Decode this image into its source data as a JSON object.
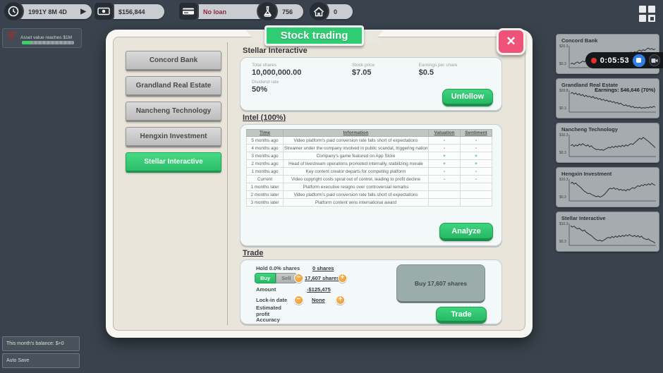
{
  "colors": {
    "accent_green": "#2fcc74",
    "close_pink": "#f0537a",
    "loan_red": "#8e2b3a",
    "coin_orange": "#ef9426"
  },
  "top_bar": {
    "date": "1991Y 8M 4D",
    "money": "$156,844",
    "loan": "No loan",
    "research_points": "756",
    "properties": "0"
  },
  "achievement": {
    "label": "Asset value reaches $1M"
  },
  "banner": {
    "title": "Stock trading"
  },
  "dialog": {
    "companies": [
      "Concord Bank",
      "Grandland Real Estate",
      "Nancheng Technology",
      "Hengxin Investment",
      "Stellar Interactive"
    ],
    "stats": {
      "heading": "Stellar Interactive",
      "total_shares_label": "Total shares",
      "total_shares": "10,000,000.00",
      "stock_price_label": "Stock price",
      "stock_price": "$7.05",
      "eps_label": "Earnings per share",
      "eps": "$0.5",
      "dividend_label": "Dividend rate",
      "dividend": "50%",
      "unfollow": "Unfollow"
    },
    "intel": {
      "heading": "Intel (100%)",
      "columns": [
        "Time",
        "Information",
        "Valuation",
        "Sentiment"
      ],
      "rows": [
        {
          "time": "5 months ago",
          "info": "Video platform's paid conversion rate falls short of expectations",
          "valuation": "-",
          "sentiment": "-"
        },
        {
          "time": "4 months ago",
          "info": "Streamer under the company involved in public scandal, triggering nation",
          "valuation": "-",
          "sentiment": "-"
        },
        {
          "time": "3 months ago",
          "info": "Company's game featured on App Store",
          "valuation": "+",
          "sentiment": "+"
        },
        {
          "time": "2 months ago",
          "info": "Head of livestream operations promoted internally, stabilizing morale",
          "valuation": "+",
          "sentiment": "+"
        },
        {
          "time": "1 months ago",
          "info": "Key content creator departs for competing platform",
          "valuation": "-",
          "sentiment": "-"
        },
        {
          "time": "Current",
          "info": "Video copyright costs spiral out of control, leading to profit decline",
          "valuation": "-",
          "sentiment": "-"
        },
        {
          "time": "1 months later",
          "info": "Platform executive resigns over controversial remarks",
          "valuation": "",
          "sentiment": ""
        },
        {
          "time": "2 months later",
          "info": "Video platform's paid conversion rate falls short of expectations",
          "valuation": "",
          "sentiment": ""
        },
        {
          "time": "3 months later",
          "info": "Platform content wins international award",
          "valuation": "",
          "sentiment": ""
        }
      ],
      "analyze": "Analyze"
    },
    "trade": {
      "heading": "Trade",
      "hold_label": "Hold 0.0% shares",
      "hold_value": "0 shares",
      "buy": "Buy",
      "sell": "Sell",
      "shares": "17,607 shares",
      "amount_label": "Amount",
      "amount": "-$125,475",
      "lockin_label": "Lock-in date",
      "lockin": "None",
      "estimated_label": "Estimated profit",
      "accuracy_label": "Accuracy",
      "action": "Buy 17,607 shares",
      "trade": "Trade"
    }
  },
  "sidebar": {
    "cards": [
      {
        "name": "Concord Bank",
        "y_top": "$20.3",
        "y_bottom": "$0.3",
        "points": [
          12,
          16,
          10,
          18,
          22,
          15,
          20,
          26,
          22,
          30,
          26,
          34,
          30,
          24,
          28,
          20,
          26,
          34,
          30,
          38,
          34,
          42,
          38,
          46,
          50,
          44,
          52,
          48,
          56,
          52,
          60,
          56,
          64,
          60,
          68,
          72,
          66,
          74,
          70,
          78,
          82,
          76,
          84,
          80,
          88,
          92,
          86,
          90,
          84,
          88
        ]
      },
      {
        "name": "Grandland Real Estate",
        "earnings": "Earnings: $46,646 (70%)",
        "y_top": "$20.8",
        "y_bottom": "$0.3",
        "points": [
          88,
          92,
          84,
          90,
          80,
          86,
          76,
          82,
          72,
          78,
          70,
          74,
          66,
          72,
          62,
          66,
          58,
          62,
          54,
          58,
          50,
          54,
          46,
          50,
          42,
          46,
          38,
          42,
          34,
          38,
          30,
          26,
          30,
          22,
          26,
          18,
          22,
          15,
          18,
          14,
          18,
          12,
          16,
          13,
          17,
          14,
          20,
          16,
          22,
          18
        ]
      },
      {
        "name": "Nancheng Technology",
        "y_top": "$10.3",
        "y_bottom": "$0.3",
        "points": [
          48,
          54,
          44,
          52,
          46,
          56,
          50,
          58,
          52,
          46,
          52,
          42,
          48,
          38,
          32,
          28,
          30,
          26,
          28,
          24,
          30,
          34,
          40,
          36,
          44,
          38,
          46,
          40,
          48,
          42,
          50,
          44,
          52,
          46,
          54,
          58,
          54,
          62,
          70,
          78,
          86,
          80,
          90,
          84,
          76,
          70,
          62,
          54,
          46,
          38
        ]
      },
      {
        "name": "Hengxin Investment",
        "y_top": "$10.3",
        "y_bottom": "$0.3",
        "points": [
          82,
          88,
          78,
          84,
          74,
          68,
          60,
          50,
          42,
          36,
          30,
          32,
          26,
          22,
          18,
          14,
          18,
          12,
          16,
          22,
          30,
          40,
          52,
          58,
          54,
          60,
          52,
          56,
          48,
          52,
          46,
          50,
          44,
          52,
          48,
          56,
          60,
          56,
          64,
          70,
          66,
          74,
          70,
          78,
          72,
          80,
          74,
          82,
          76,
          72
        ]
      },
      {
        "name": "Stellar Interactive",
        "y_top": "$10.3",
        "y_bottom": "$0.3",
        "points": [
          92,
          86,
          90,
          82,
          76,
          80,
          72,
          66,
          70,
          60,
          54,
          48,
          42,
          34,
          26,
          20,
          16,
          20,
          14,
          18,
          24,
          30,
          34,
          30,
          38,
          32,
          40,
          34,
          42,
          36,
          44,
          38,
          46,
          40,
          48,
          42,
          38,
          44,
          36,
          42,
          34,
          40,
          30,
          26,
          22,
          26,
          18,
          14,
          10,
          4
        ]
      }
    ]
  },
  "recorder": {
    "time": "0:05:53"
  },
  "footer": {
    "balance": "This month's balance: $+0",
    "autosave": "Auto Save"
  }
}
